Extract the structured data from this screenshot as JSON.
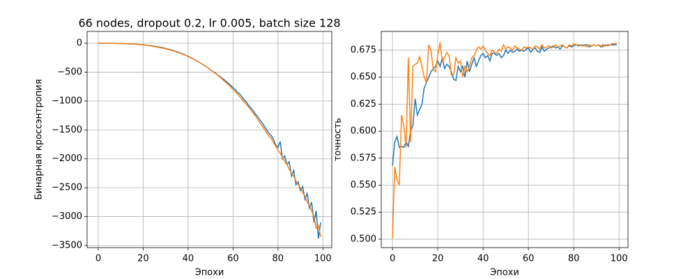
{
  "chart_data": [
    {
      "type": "line",
      "title": "66 nodes, dropout 0.2, lr 0.005, batch size 128",
      "xlabel": "Эпохи",
      "ylabel": "Бинарная кроссэнтропия",
      "grid": true,
      "xlim": [
        -4.95,
        103.95
      ],
      "ylim": [
        -3536,
        205
      ],
      "xticks": [
        0,
        20,
        40,
        60,
        80,
        100
      ],
      "yticks": [
        0,
        {
          "value": -500,
          "label": "−500"
        },
        {
          "value": -1000,
          "label": "−1000"
        },
        {
          "value": -1500,
          "label": "−1500"
        },
        {
          "value": -2000,
          "label": "−2000"
        },
        {
          "value": -2500,
          "label": "−2500"
        },
        {
          "value": -3000,
          "label": "−3000"
        },
        {
          "value": -3500,
          "label": "−3500"
        }
      ],
      "x": [
        0,
        1,
        2,
        3,
        4,
        5,
        6,
        7,
        8,
        9,
        10,
        11,
        12,
        13,
        14,
        15,
        16,
        17,
        18,
        19,
        20,
        21,
        22,
        23,
        24,
        25,
        26,
        27,
        28,
        29,
        30,
        31,
        32,
        33,
        34,
        35,
        36,
        37,
        38,
        39,
        40,
        41,
        42,
        43,
        44,
        45,
        46,
        47,
        48,
        49,
        50,
        51,
        52,
        53,
        54,
        55,
        56,
        57,
        58,
        59,
        60,
        61,
        62,
        63,
        64,
        65,
        66,
        67,
        68,
        69,
        70,
        71,
        72,
        73,
        74,
        75,
        76,
        77,
        78,
        79,
        80,
        81,
        82,
        83,
        84,
        85,
        86,
        87,
        88,
        89,
        90,
        91,
        92,
        93,
        94,
        95,
        96,
        97,
        98,
        99
      ],
      "series": [
        {
          "color": "#1f77b4",
          "values": [
            0,
            0,
            0,
            0,
            -1,
            -1,
            -2,
            -2,
            -3,
            -4,
            -5,
            -6,
            -7,
            -9,
            -10,
            -12,
            -14,
            -17,
            -20,
            -23,
            -27,
            -31,
            -36,
            -40,
            -46,
            -52,
            -58,
            -65,
            -72,
            -80,
            -92,
            -100,
            -112,
            -120,
            -135,
            -145,
            -160,
            -175,
            -190,
            -210,
            -225,
            -245,
            -265,
            -285,
            -310,
            -330,
            -355,
            -380,
            -405,
            -430,
            -460,
            -490,
            -510,
            -545,
            -570,
            -600,
            -630,
            -665,
            -700,
            -730,
            -770,
            -800,
            -850,
            -880,
            -930,
            -980,
            -1020,
            -1080,
            -1120,
            -1170,
            -1230,
            -1270,
            -1330,
            -1380,
            -1440,
            -1500,
            -1560,
            -1600,
            -1660,
            -1760,
            -1800,
            -1700,
            -2000,
            -1950,
            -2100,
            -2050,
            -2300,
            -2200,
            -2450,
            -2400,
            -2550,
            -2480,
            -2700,
            -2600,
            -2850,
            -2750,
            -3100,
            -2900,
            -3380,
            -3100
          ]
        },
        {
          "color": "#ff7f0e",
          "values": [
            0,
            0,
            0,
            0,
            -1,
            -1,
            -2,
            -3,
            -4,
            -5,
            -6,
            -7,
            -8,
            -10,
            -12,
            -14,
            -16,
            -19,
            -22,
            -26,
            -30,
            -35,
            -40,
            -46,
            -52,
            -58,
            -65,
            -72,
            -80,
            -88,
            -97,
            -107,
            -118,
            -129,
            -140,
            -152,
            -165,
            -180,
            -195,
            -212,
            -230,
            -250,
            -270,
            -290,
            -310,
            -332,
            -355,
            -380,
            -405,
            -430,
            -460,
            -490,
            -520,
            -550,
            -580,
            -615,
            -650,
            -685,
            -720,
            -760,
            -800,
            -840,
            -880,
            -925,
            -970,
            -1015,
            -1060,
            -1110,
            -1160,
            -1210,
            -1260,
            -1320,
            -1380,
            -1430,
            -1490,
            -1550,
            -1610,
            -1650,
            -1720,
            -1780,
            -1850,
            -1900,
            -1980,
            -2040,
            -2100,
            -2180,
            -2250,
            -2300,
            -2380,
            -2450,
            -2500,
            -2580,
            -2650,
            -2750,
            -2800,
            -2900,
            -3000,
            -3200,
            -3150,
            -3350
          ]
        }
      ]
    },
    {
      "type": "line",
      "xlabel": "Эпохи",
      "ylabel": "точность",
      "grid": true,
      "xlim": [
        -4.95,
        103.95
      ],
      "ylim": [
        0.4922,
        0.6924
      ],
      "xticks": [
        0,
        20,
        40,
        60,
        80,
        100
      ],
      "yticks": [
        {
          "value": 0.5,
          "label": "0.500"
        },
        {
          "value": 0.525,
          "label": "0.525"
        },
        {
          "value": 0.55,
          "label": "0.550"
        },
        {
          "value": 0.575,
          "label": "0.575"
        },
        {
          "value": 0.6,
          "label": "0.600"
        },
        {
          "value": 0.625,
          "label": "0.625"
        },
        {
          "value": 0.65,
          "label": "0.650"
        },
        {
          "value": 0.675,
          "label": "0.675"
        }
      ],
      "x": [
        0,
        1,
        2,
        3,
        4,
        5,
        6,
        7,
        8,
        9,
        10,
        11,
        12,
        13,
        14,
        15,
        16,
        17,
        18,
        19,
        20,
        21,
        22,
        23,
        24,
        25,
        26,
        27,
        28,
        29,
        30,
        31,
        32,
        33,
        34,
        35,
        36,
        37,
        38,
        39,
        40,
        41,
        42,
        43,
        44,
        45,
        46,
        47,
        48,
        49,
        50,
        51,
        52,
        53,
        54,
        55,
        56,
        57,
        58,
        59,
        60,
        61,
        62,
        63,
        64,
        65,
        66,
        67,
        68,
        69,
        70,
        71,
        72,
        73,
        74,
        75,
        76,
        77,
        78,
        79,
        80,
        81,
        82,
        83,
        84,
        85,
        86,
        87,
        88,
        89,
        90,
        91,
        92,
        93,
        94,
        95,
        96,
        97,
        98,
        99
      ],
      "series": [
        {
          "color": "#1f77b4",
          "values": [
            0.568,
            0.59,
            0.595,
            0.585,
            0.586,
            0.585,
            0.59,
            0.586,
            0.6,
            0.605,
            0.63,
            0.615,
            0.62,
            0.625,
            0.64,
            0.645,
            0.65,
            0.655,
            0.658,
            0.66,
            0.665,
            0.66,
            0.668,
            0.658,
            0.662,
            0.66,
            0.655,
            0.648,
            0.647,
            0.66,
            0.655,
            0.66,
            0.65,
            0.665,
            0.655,
            0.662,
            0.668,
            0.66,
            0.665,
            0.67,
            0.672,
            0.668,
            0.67,
            0.665,
            0.672,
            0.672,
            0.67,
            0.672,
            0.668,
            0.67,
            0.675,
            0.672,
            0.675,
            0.673,
            0.674,
            0.676,
            0.674,
            0.675,
            0.674,
            0.676,
            0.677,
            0.673,
            0.676,
            0.677,
            0.674,
            0.673,
            0.678,
            0.674,
            0.676,
            0.677,
            0.678,
            0.679,
            0.677,
            0.678,
            0.676,
            0.679,
            0.678,
            0.677,
            0.679,
            0.678,
            0.679,
            0.68,
            0.679,
            0.68,
            0.679,
            0.68,
            0.68,
            0.678,
            0.679,
            0.68,
            0.679,
            0.68,
            0.678,
            0.68,
            0.679,
            0.68,
            0.68,
            0.68,
            0.68,
            0.68
          ]
        },
        {
          "color": "#ff7f0e",
          "values": [
            0.501,
            0.567,
            0.555,
            0.55,
            0.615,
            0.605,
            0.585,
            0.668,
            0.59,
            0.66,
            0.662,
            0.663,
            0.669,
            0.66,
            0.65,
            0.645,
            0.68,
            0.675,
            0.657,
            0.655,
            0.67,
            0.682,
            0.665,
            0.668,
            0.673,
            0.67,
            0.652,
            0.652,
            0.668,
            0.663,
            0.665,
            0.65,
            0.66,
            0.655,
            0.66,
            0.668,
            0.67,
            0.675,
            0.678,
            0.676,
            0.679,
            0.675,
            0.672,
            0.67,
            0.675,
            0.673,
            0.672,
            0.676,
            0.674,
            0.68,
            0.676,
            0.678,
            0.677,
            0.675,
            0.679,
            0.677,
            0.676,
            0.675,
            0.678,
            0.677,
            0.678,
            0.677,
            0.676,
            0.679,
            0.678,
            0.676,
            0.68,
            0.677,
            0.678,
            0.679,
            0.677,
            0.678,
            0.68,
            0.678,
            0.679,
            0.68,
            0.678,
            0.677,
            0.68,
            0.679,
            0.681,
            0.68,
            0.68,
            0.679,
            0.68,
            0.679,
            0.678,
            0.68,
            0.679,
            0.68,
            0.679,
            0.68,
            0.679,
            0.678,
            0.68,
            0.679,
            0.68,
            0.681,
            0.681,
            0.681
          ]
        }
      ]
    }
  ]
}
